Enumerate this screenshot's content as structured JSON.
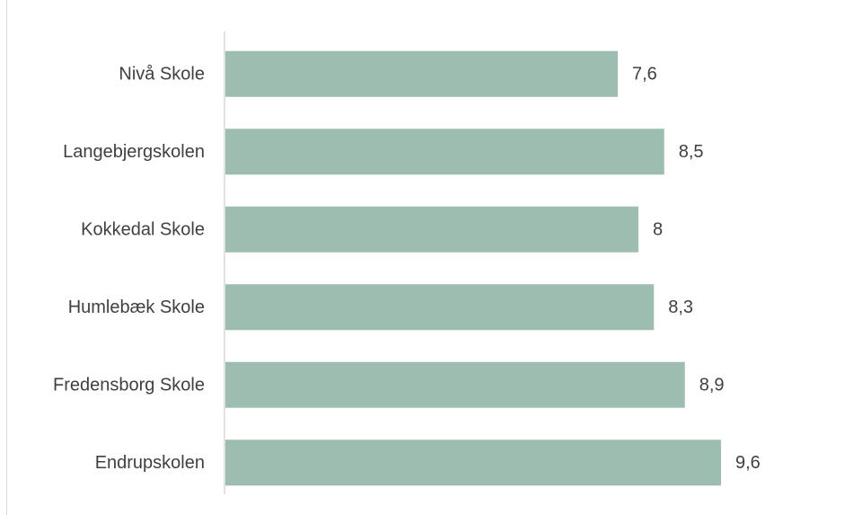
{
  "chart_data": {
    "type": "bar",
    "orientation": "horizontal",
    "title": "",
    "title_note": "title text is cut off at the top edge of the screenshot",
    "xlabel": "",
    "ylabel": "",
    "categories": [
      "Nivå Skole",
      "Langebjergskolen",
      "Kokkedal Skole",
      "Humlebæk Skole",
      "Fredensborg Skole",
      "Endrupskolen"
    ],
    "values": [
      7.6,
      8.5,
      8,
      8.3,
      8.9,
      9.6
    ],
    "value_labels": [
      "7,6",
      "8,5",
      "8",
      "8,3",
      "8,9",
      "9,6"
    ],
    "xlim": [
      0,
      10
    ],
    "grid": false,
    "legend": "none",
    "colors": {
      "bar": "#9dbdb0",
      "axis": "#d9d9d9",
      "text": "#404040"
    }
  }
}
